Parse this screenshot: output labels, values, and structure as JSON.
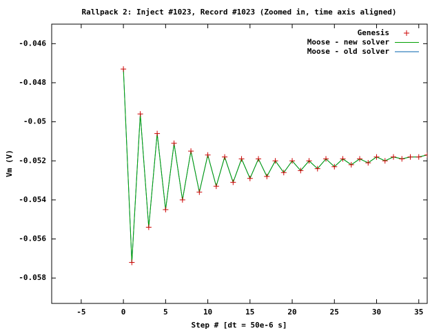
{
  "chart_data": {
    "type": "line",
    "title": "Rallpack 2: Inject #1023, Record #1023 (Zoomed in, time axis aligned)",
    "xlabel": "Step # [dt = 50e-6 s]",
    "ylabel": "Vm (V)",
    "x": [
      0,
      1,
      2,
      3,
      4,
      5,
      6,
      7,
      8,
      9,
      10,
      11,
      12,
      13,
      14,
      15,
      16,
      17,
      18,
      19,
      20,
      21,
      22,
      23,
      24,
      25,
      26,
      27,
      28,
      29,
      30,
      31,
      32,
      33,
      34,
      35,
      36
    ],
    "series": [
      {
        "name": "Genesis",
        "color": "#cc0000",
        "marker": "+",
        "values": [
          -0.0473,
          -0.0572,
          -0.0496,
          -0.0554,
          -0.0506,
          -0.0545,
          -0.0511,
          -0.054,
          -0.0515,
          -0.0536,
          -0.0517,
          -0.0533,
          -0.0518,
          -0.0531,
          -0.0519,
          -0.0529,
          -0.0519,
          -0.0528,
          -0.052,
          -0.0526,
          -0.052,
          -0.0525,
          -0.052,
          -0.0524,
          -0.0519,
          -0.0523,
          -0.0519,
          -0.0522,
          -0.0519,
          -0.0521,
          -0.0518,
          -0.052,
          -0.0518,
          -0.0519,
          -0.0518,
          -0.0518,
          -0.0517
        ]
      },
      {
        "name": "Moose - new solver",
        "color": "#00a000",
        "values": [
          -0.0473,
          -0.0572,
          -0.0496,
          -0.0554,
          -0.0506,
          -0.0545,
          -0.0511,
          -0.054,
          -0.0515,
          -0.0536,
          -0.0517,
          -0.0533,
          -0.0518,
          -0.0531,
          -0.0519,
          -0.0529,
          -0.0519,
          -0.0528,
          -0.052,
          -0.0526,
          -0.052,
          -0.0525,
          -0.052,
          -0.0524,
          -0.0519,
          -0.0523,
          -0.0519,
          -0.0522,
          -0.0519,
          -0.0521,
          -0.0518,
          -0.052,
          -0.0518,
          -0.0519,
          -0.0518,
          -0.0518,
          -0.0517
        ]
      },
      {
        "name": "Moose - old solver",
        "color": "#0060ad",
        "values": [
          -0.0473,
          -0.0572,
          -0.0496,
          -0.0554,
          -0.0506,
          -0.0545,
          -0.0511,
          -0.054,
          -0.0515,
          -0.0536,
          -0.0517,
          -0.0533,
          -0.0518,
          -0.0531,
          -0.0519,
          -0.0529,
          -0.0519,
          -0.0528,
          -0.052,
          -0.0526,
          -0.052,
          -0.0525,
          -0.052,
          -0.0524,
          -0.0519,
          -0.0523,
          -0.0519,
          -0.0522,
          -0.0519,
          -0.0521,
          -0.0518,
          -0.052,
          -0.0518,
          -0.0519,
          -0.0518,
          -0.0518,
          -0.0517
        ]
      }
    ],
    "xlim": [
      -8.5,
      36
    ],
    "xticks": [
      -5,
      0,
      5,
      10,
      15,
      20,
      25,
      30,
      35
    ],
    "ylim": [
      -0.0593,
      -0.045
    ],
    "yticks": [
      -0.058,
      -0.056,
      -0.054,
      -0.052,
      -0.05,
      -0.048,
      -0.046
    ],
    "grid": false,
    "legend": "top-right"
  }
}
